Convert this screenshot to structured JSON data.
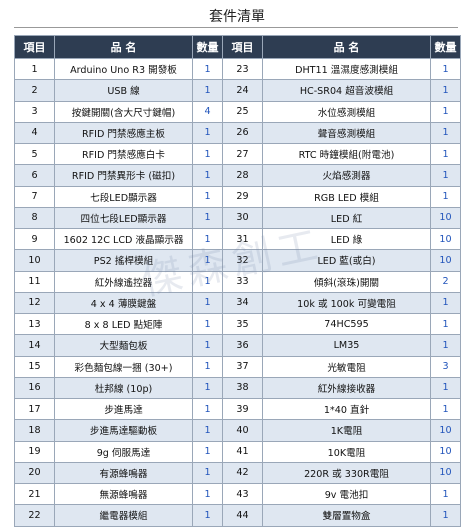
{
  "title": "套件清單",
  "headers": {
    "no": "項目",
    "name": "品  名",
    "qty": "數量"
  },
  "rows": [
    {
      "l": {
        "no": "1",
        "name": "Arduino Uno R3 開發板",
        "qty": "1"
      },
      "r": {
        "no": "23",
        "name": "DHT11 溫濕度感測模組",
        "qty": "1"
      }
    },
    {
      "l": {
        "no": "2",
        "name": "USB 線",
        "qty": "1"
      },
      "r": {
        "no": "24",
        "name": "HC-SR04 超音波模組",
        "qty": "1"
      }
    },
    {
      "l": {
        "no": "3",
        "name": "按鍵開關(含大尺寸鍵帽)",
        "qty": "4"
      },
      "r": {
        "no": "25",
        "name": "水位感測模組",
        "qty": "1"
      }
    },
    {
      "l": {
        "no": "4",
        "name": "RFID 門禁感應主板",
        "qty": "1"
      },
      "r": {
        "no": "26",
        "name": "聲音感測模組",
        "qty": "1"
      }
    },
    {
      "l": {
        "no": "5",
        "name": "RFID 門禁感應白卡",
        "qty": "1"
      },
      "r": {
        "no": "27",
        "name": "RTC 時鐘模組(附電池)",
        "qty": "1"
      }
    },
    {
      "l": {
        "no": "6",
        "name": "RFID 門禁異形卡 (磁扣)",
        "qty": "1"
      },
      "r": {
        "no": "28",
        "name": "火焰感測器",
        "qty": "1"
      }
    },
    {
      "l": {
        "no": "7",
        "name": "七段LED顯示器",
        "qty": "1"
      },
      "r": {
        "no": "29",
        "name": "RGB LED 模組",
        "qty": "1"
      }
    },
    {
      "l": {
        "no": "8",
        "name": "四位七段LED顯示器",
        "qty": "1"
      },
      "r": {
        "no": "30",
        "name": "LED 紅",
        "qty": "10"
      }
    },
    {
      "l": {
        "no": "9",
        "name": "1602 12C LCD 液晶顯示器",
        "qty": "1"
      },
      "r": {
        "no": "31",
        "name": "LED 綠",
        "qty": "10"
      }
    },
    {
      "l": {
        "no": "10",
        "name": "PS2 搖桿模組",
        "qty": "1"
      },
      "r": {
        "no": "32",
        "name": "LED 藍(或白)",
        "qty": "10"
      }
    },
    {
      "l": {
        "no": "11",
        "name": "紅外線遙控器",
        "qty": "1"
      },
      "r": {
        "no": "33",
        "name": "傾斜(滾珠)開關",
        "qty": "2"
      }
    },
    {
      "l": {
        "no": "12",
        "name": "4 x 4 薄膜鍵盤",
        "qty": "1"
      },
      "r": {
        "no": "34",
        "name": "10k 或 100k 可變電阻",
        "qty": "1"
      }
    },
    {
      "l": {
        "no": "13",
        "name": "8 x 8 LED 點矩陣",
        "qty": "1"
      },
      "r": {
        "no": "35",
        "name": "74HC595",
        "qty": "1"
      }
    },
    {
      "l": {
        "no": "14",
        "name": "大型麵包板",
        "qty": "1"
      },
      "r": {
        "no": "36",
        "name": "LM35",
        "qty": "1"
      }
    },
    {
      "l": {
        "no": "15",
        "name": "彩色麵包線一捆 (30+)",
        "qty": "1"
      },
      "r": {
        "no": "37",
        "name": "光敏電阻",
        "qty": "3"
      }
    },
    {
      "l": {
        "no": "16",
        "name": "杜邦線 (10p)",
        "qty": "1"
      },
      "r": {
        "no": "38",
        "name": "紅外線接收器",
        "qty": "1"
      }
    },
    {
      "l": {
        "no": "17",
        "name": "步進馬達",
        "qty": "1"
      },
      "r": {
        "no": "39",
        "name": "1*40 直針",
        "qty": "1"
      }
    },
    {
      "l": {
        "no": "18",
        "name": "步進馬達驅動板",
        "qty": "1"
      },
      "r": {
        "no": "40",
        "name": "1K電阻",
        "qty": "10"
      }
    },
    {
      "l": {
        "no": "19",
        "name": "9g 伺服馬達",
        "qty": "1"
      },
      "r": {
        "no": "41",
        "name": "10K電阻",
        "qty": "10"
      }
    },
    {
      "l": {
        "no": "20",
        "name": "有源蜂鳴器",
        "qty": "1"
      },
      "r": {
        "no": "42",
        "name": "220R 或 330R電阻",
        "qty": "10"
      }
    },
    {
      "l": {
        "no": "21",
        "name": "無源蜂鳴器",
        "qty": "1"
      },
      "r": {
        "no": "43",
        "name": "9v 電池扣",
        "qty": "1"
      }
    },
    {
      "l": {
        "no": "22",
        "name": "繼電器模組",
        "qty": "1"
      },
      "r": {
        "no": "44",
        "name": "雙層置物盒",
        "qty": "1"
      }
    }
  ]
}
